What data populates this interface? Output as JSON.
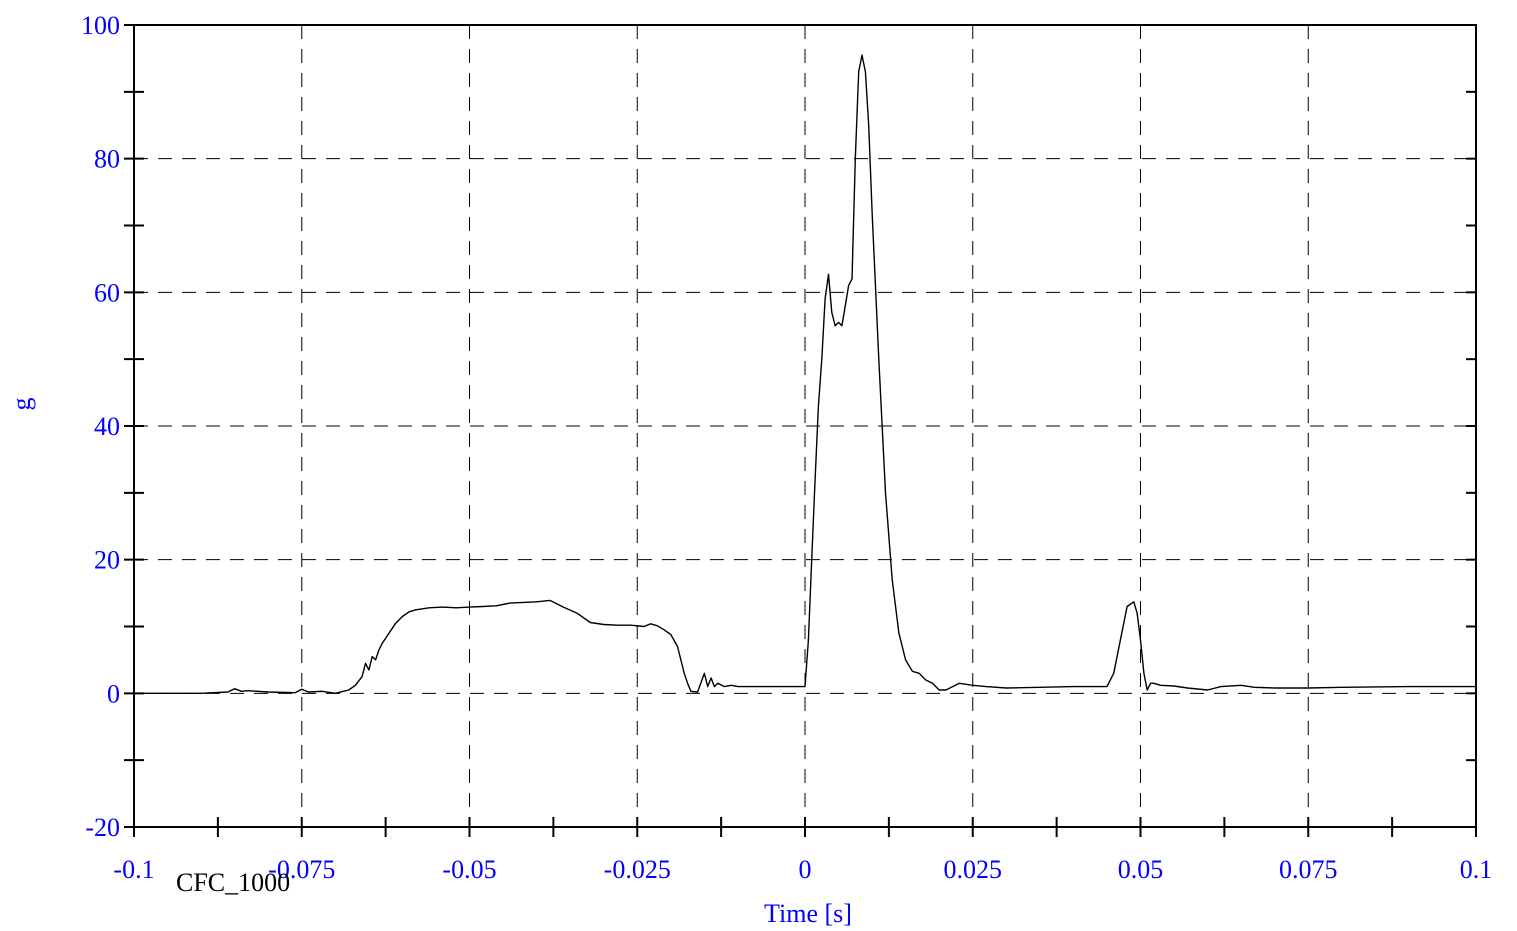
{
  "chart_data": {
    "type": "line",
    "title": "",
    "xlabel": "Time [s]",
    "ylabel": "g",
    "xlim": [
      -0.1,
      0.1
    ],
    "ylim": [
      -20,
      100
    ],
    "xticks": [
      -0.1,
      -0.075,
      -0.05,
      -0.025,
      0,
      0.025,
      0.05,
      0.075,
      0.1
    ],
    "xtick_labels": [
      "-0.1",
      "-0.075",
      "-0.05",
      "-0.025",
      "0",
      "0.025",
      "0.05",
      "0.075",
      "0.1"
    ],
    "yticks": [
      -20,
      0,
      20,
      40,
      60,
      80,
      100
    ],
    "ytick_labels": [
      "-20",
      "0",
      "20",
      "40",
      "60",
      "80",
      "100"
    ],
    "grid": true,
    "annotation": "CFC_1000",
    "colors": {
      "axis_text": "#0000ff",
      "line": "#000000",
      "grid": "#000000"
    },
    "series": [
      {
        "x": [
          -0.1,
          -0.09,
          -0.086,
          -0.085,
          -0.084,
          -0.083,
          -0.08,
          -0.076,
          -0.075,
          -0.074,
          -0.072,
          -0.07,
          -0.068,
          -0.067,
          -0.066,
          -0.0655,
          -0.065,
          -0.0645,
          -0.064,
          -0.0635,
          -0.063,
          -0.062,
          -0.061,
          -0.06,
          -0.059,
          -0.058,
          -0.056,
          -0.054,
          -0.052,
          -0.05,
          -0.048,
          -0.046,
          -0.044,
          -0.042,
          -0.04,
          -0.038,
          -0.036,
          -0.034,
          -0.032,
          -0.03,
          -0.028,
          -0.026,
          -0.024,
          -0.023,
          -0.022,
          -0.021,
          -0.02,
          -0.019,
          -0.0185,
          -0.018,
          -0.0175,
          -0.017,
          -0.016,
          -0.015,
          -0.0145,
          -0.014,
          -0.0135,
          -0.013,
          -0.012,
          -0.011,
          -0.01,
          -0.008,
          -0.006,
          -0.004,
          -0.002,
          0,
          0.0005,
          0.001,
          0.0015,
          0.002,
          0.0025,
          0.003,
          0.0035,
          0.004,
          0.0045,
          0.005,
          0.0055,
          0.006,
          0.0065,
          0.007,
          0.0075,
          0.008,
          0.0085,
          0.009,
          0.0095,
          0.01,
          0.011,
          0.012,
          0.013,
          0.014,
          0.015,
          0.016,
          0.017,
          0.018,
          0.019,
          0.02,
          0.021,
          0.022,
          0.023,
          0.025,
          0.027,
          0.03,
          0.035,
          0.04,
          0.045,
          0.046,
          0.047,
          0.048,
          0.049,
          0.0495,
          0.05,
          0.0505,
          0.051,
          0.0515,
          0.052,
          0.053,
          0.055,
          0.057,
          0.06,
          0.062,
          0.065,
          0.067,
          0.07,
          0.075,
          0.08,
          0.09,
          0.1
        ],
        "y": [
          0,
          0,
          0.2,
          0.7,
          0.3,
          0.4,
          0.2,
          0.1,
          0.6,
          0.2,
          0.3,
          0,
          0.5,
          1.2,
          2.5,
          4.5,
          3.5,
          5.5,
          5.0,
          6.5,
          7.5,
          9.0,
          10.5,
          11.5,
          12.2,
          12.5,
          12.8,
          12.9,
          12.8,
          12.9,
          13.0,
          13.1,
          13.5,
          13.6,
          13.7,
          13.9,
          12.9,
          12.0,
          10.6,
          10.3,
          10.2,
          10.2,
          10.0,
          10.4,
          10.1,
          9.5,
          8.8,
          7.0,
          5.0,
          3.0,
          1.5,
          0.3,
          0.2,
          3.0,
          1.0,
          2.3,
          1.0,
          1.5,
          1.0,
          1.2,
          1.0,
          1.0,
          1.0,
          1.0,
          1.0,
          1.0,
          8.0,
          20.0,
          32.0,
          43.0,
          50.0,
          59.0,
          62.7,
          57.0,
          55.0,
          55.5,
          55.0,
          58.0,
          61.0,
          62.0,
          80.0,
          93.0,
          95.5,
          93.0,
          85.0,
          72.0,
          50.0,
          30.0,
          17.0,
          9.0,
          5.0,
          3.3,
          3.0,
          2.0,
          1.5,
          0.5,
          0.5,
          1.0,
          1.5,
          1.2,
          1.0,
          0.8,
          0.9,
          1.0,
          1.0,
          3.0,
          8.0,
          13.0,
          13.7,
          12.0,
          8.0,
          3.0,
          0.5,
          1.5,
          1.5,
          1.2,
          1.1,
          0.8,
          0.5,
          1.0,
          1.2,
          0.9,
          0.8,
          0.8,
          0.9,
          1.0,
          1.0
        ]
      }
    ]
  }
}
